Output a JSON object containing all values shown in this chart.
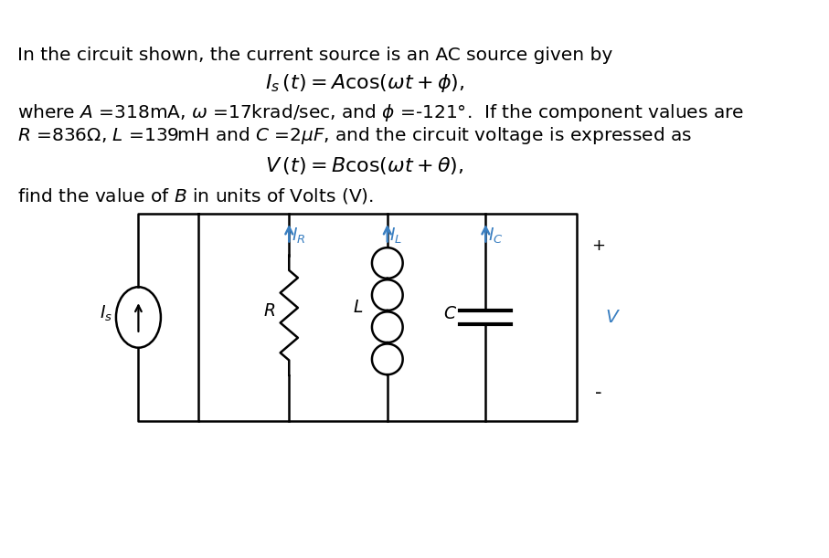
{
  "background_color": "#ffffff",
  "text_color": "#000000",
  "blue_color": "#3a7fc1",
  "line1": "In the circuit shown, the current source is an AC source given by",
  "eq1": "$I_s\\,(t) = A\\mathrm{cos}(\\omega t + \\phi),$",
  "line2a": "where $A$ =318mA, $\\omega$ =17krad/sec, and $\\phi$ =-121°.  If the component values are",
  "line2b": "$R$ =836Ω, $L$ =139mH and $C$ =2$\\mu F$, and the circuit voltage is expressed as",
  "eq2": "$V\\,(t) = B\\mathrm{cos}(\\omega t + \\theta),$",
  "line3": "find the value of $B$ in units of Volts (V)."
}
